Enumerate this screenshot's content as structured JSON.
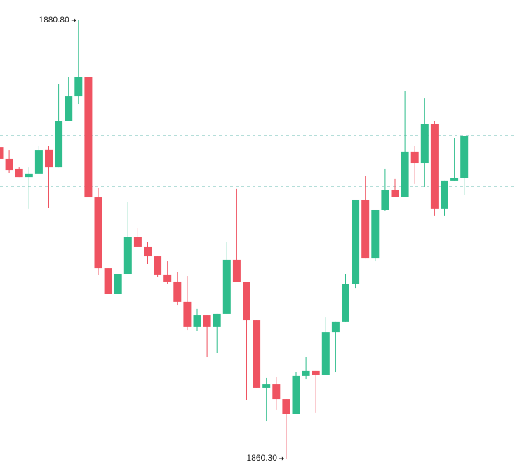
{
  "chart_data": {
    "type": "candlestick",
    "up_color": "#2fbd8c",
    "down_color": "#ef5361",
    "open": [
      1874.85,
      1874.33,
      1873.87,
      1873.47,
      1873.61,
      1874.76,
      1873.93,
      1876.1,
      1877.25,
      1878.14,
      1872.52,
      1869.2,
      1868.02,
      1868.94,
      1870.65,
      1870.19,
      1869.76,
      1868.91,
      1868.58,
      1867.63,
      1866.48,
      1867.0,
      1866.48,
      1867.07,
      1869.6,
      1868.55,
      1866.77,
      1863.62,
      1863.78,
      1863.09,
      1862.4,
      1864.18,
      1864.41,
      1864.21,
      1866.21,
      1866.71,
      1868.45,
      1872.39,
      1869.66,
      1871.93,
      1872.88,
      1872.55,
      1874.66,
      1874.13,
      1875.97,
      1872.0,
      1873.28,
      1873.41
    ],
    "high": [
      1875.02,
      1874.72,
      1873.93,
      1873.93,
      1874.92,
      1874.92,
      1877.81,
      1878.14,
      1880.8,
      1878.14,
      1872.95,
      1869.2,
      1868.94,
      1872.29,
      1871.11,
      1870.45,
      1869.76,
      1869.53,
      1869.01,
      1868.84,
      1867.3,
      1867.0,
      1867.07,
      1870.42,
      1872.92,
      1868.55,
      1866.77,
      1864.08,
      1864.11,
      1863.09,
      1864.34,
      1865.06,
      1864.41,
      1866.9,
      1866.71,
      1868.94,
      1872.39,
      1873.54,
      1871.93,
      1873.87,
      1873.38,
      1877.48,
      1874.92,
      1877.15,
      1876.1,
      1873.28,
      1875.31,
      1875.41
    ],
    "low": [
      1874.13,
      1873.67,
      1873.47,
      1872.0,
      1873.61,
      1872.03,
      1873.93,
      1876.1,
      1876.89,
      1872.52,
      1868.88,
      1868.02,
      1868.02,
      1868.94,
      1870.19,
      1869.4,
      1868.78,
      1868.45,
      1867.46,
      1866.31,
      1866.25,
      1865.03,
      1865.26,
      1867.07,
      1868.55,
      1863.03,
      1863.62,
      1862.04,
      1862.57,
      1860.3,
      1862.4,
      1864.01,
      1862.44,
      1864.21,
      1864.34,
      1866.71,
      1868.28,
      1869.66,
      1869.53,
      1871.9,
      1872.55,
      1872.55,
      1873.15,
      1873.01,
      1871.67,
      1871.67,
      1873.28,
      1872.65
    ],
    "close": [
      1874.33,
      1873.8,
      1873.47,
      1873.61,
      1874.72,
      1873.93,
      1876.1,
      1877.25,
      1878.14,
      1872.52,
      1869.2,
      1868.02,
      1868.94,
      1870.65,
      1870.19,
      1869.76,
      1868.91,
      1868.58,
      1867.63,
      1866.48,
      1867.0,
      1866.48,
      1867.07,
      1869.6,
      1868.55,
      1866.77,
      1863.62,
      1863.78,
      1863.09,
      1862.4,
      1864.18,
      1864.41,
      1864.21,
      1866.21,
      1866.71,
      1868.45,
      1872.39,
      1869.66,
      1871.93,
      1872.88,
      1872.55,
      1874.66,
      1874.13,
      1875.97,
      1872.0,
      1873.28,
      1873.41,
      1875.41
    ],
    "price_lines": [
      1875.41,
      1873.01
    ],
    "price_line_color": "#3aa89a",
    "annotations": [
      {
        "value": 1880.8,
        "label": "1880.80"
      },
      {
        "value": 1860.3,
        "label": "1860.30"
      }
    ]
  }
}
